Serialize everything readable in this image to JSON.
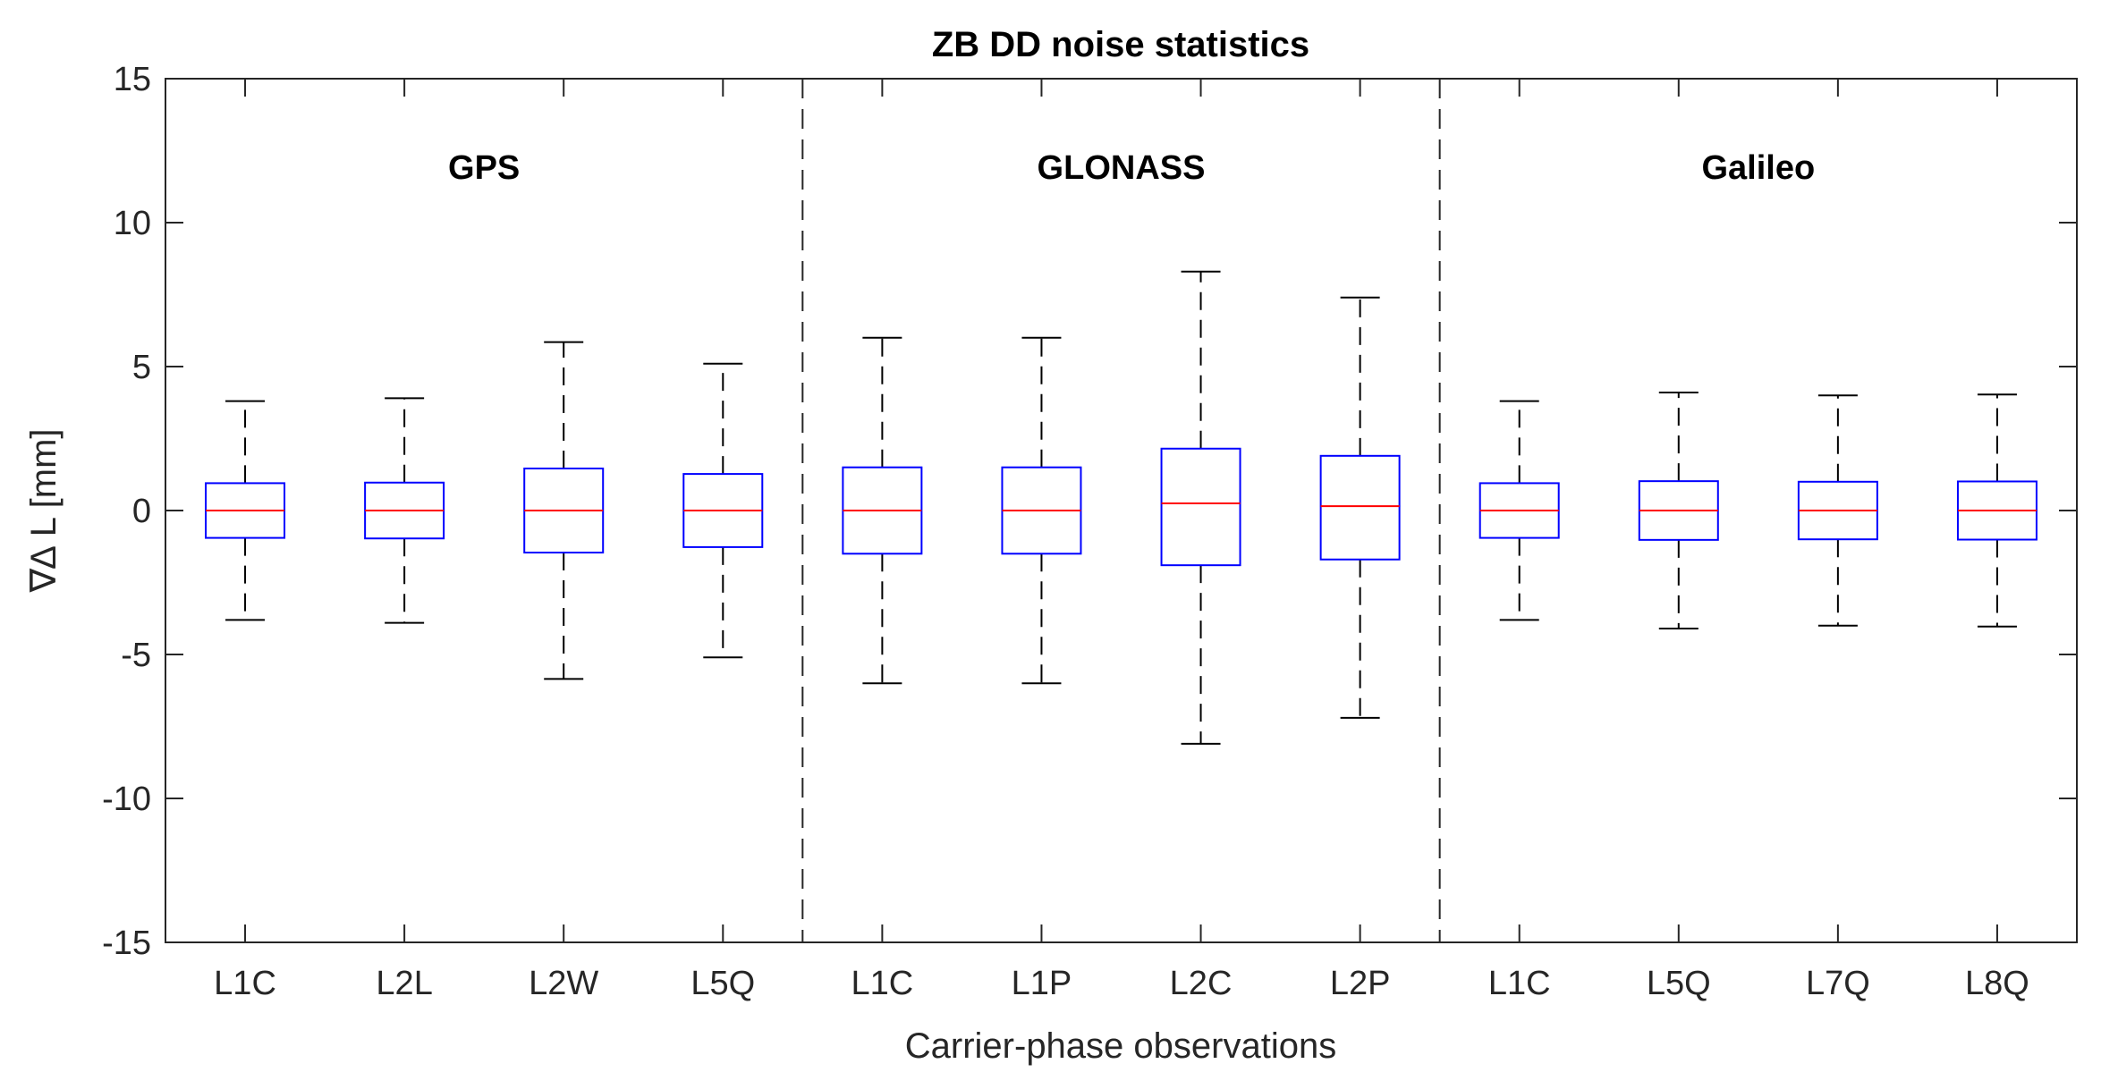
{
  "chart_data": {
    "type": "boxplot",
    "title": "ZB DD noise statistics",
    "xlabel": "Carrier-phase observations",
    "ylabel": "∇∆ L [mm]",
    "ylim": [
      -15,
      15
    ],
    "yticks": [
      -15,
      -10,
      -5,
      0,
      5,
      10,
      15
    ],
    "ytick_labels": [
      "-15",
      "-10",
      "-5",
      "0",
      "5",
      "10",
      "15"
    ],
    "groups": [
      {
        "name": "GPS",
        "start": 0,
        "count": 4
      },
      {
        "name": "GLONASS",
        "start": 4,
        "count": 4
      },
      {
        "name": "Galileo",
        "start": 8,
        "count": 4
      }
    ],
    "categories": [
      "L1C",
      "L2L",
      "L2W",
      "L5Q",
      "L1C",
      "L1P",
      "L2C",
      "L2P",
      "L1C",
      "L5Q",
      "L7Q",
      "L8Q"
    ],
    "boxes": [
      {
        "whisker_low": -3.8,
        "q1": -0.95,
        "median": 0.0,
        "q3": 0.95,
        "whisker_high": 3.8
      },
      {
        "whisker_low": -3.9,
        "q1": -0.97,
        "median": 0.0,
        "q3": 0.97,
        "whisker_high": 3.9
      },
      {
        "whisker_low": -5.85,
        "q1": -1.46,
        "median": 0.0,
        "q3": 1.46,
        "whisker_high": 5.85
      },
      {
        "whisker_low": -5.1,
        "q1": -1.27,
        "median": 0.0,
        "q3": 1.27,
        "whisker_high": 5.1
      },
      {
        "whisker_low": -6.0,
        "q1": -1.5,
        "median": 0.0,
        "q3": 1.5,
        "whisker_high": 6.0
      },
      {
        "whisker_low": -6.0,
        "q1": -1.5,
        "median": 0.0,
        "q3": 1.5,
        "whisker_high": 6.0
      },
      {
        "whisker_low": -8.1,
        "q1": -1.9,
        "median": 0.25,
        "q3": 2.15,
        "whisker_high": 8.3
      },
      {
        "whisker_low": -7.2,
        "q1": -1.7,
        "median": 0.15,
        "q3": 1.9,
        "whisker_high": 7.4
      },
      {
        "whisker_low": -3.8,
        "q1": -0.95,
        "median": 0.0,
        "q3": 0.95,
        "whisker_high": 3.8
      },
      {
        "whisker_low": -4.1,
        "q1": -1.02,
        "median": 0.0,
        "q3": 1.02,
        "whisker_high": 4.1
      },
      {
        "whisker_low": -4.0,
        "q1": -1.0,
        "median": 0.0,
        "q3": 1.0,
        "whisker_high": 4.0
      },
      {
        "whisker_low": -4.03,
        "q1": -1.01,
        "median": 0.0,
        "q3": 1.01,
        "whisker_high": 4.03
      }
    ],
    "colors": {
      "box": "#0000ff",
      "median": "#ff0000",
      "whisker": "#000000",
      "axes": "#262626"
    }
  }
}
